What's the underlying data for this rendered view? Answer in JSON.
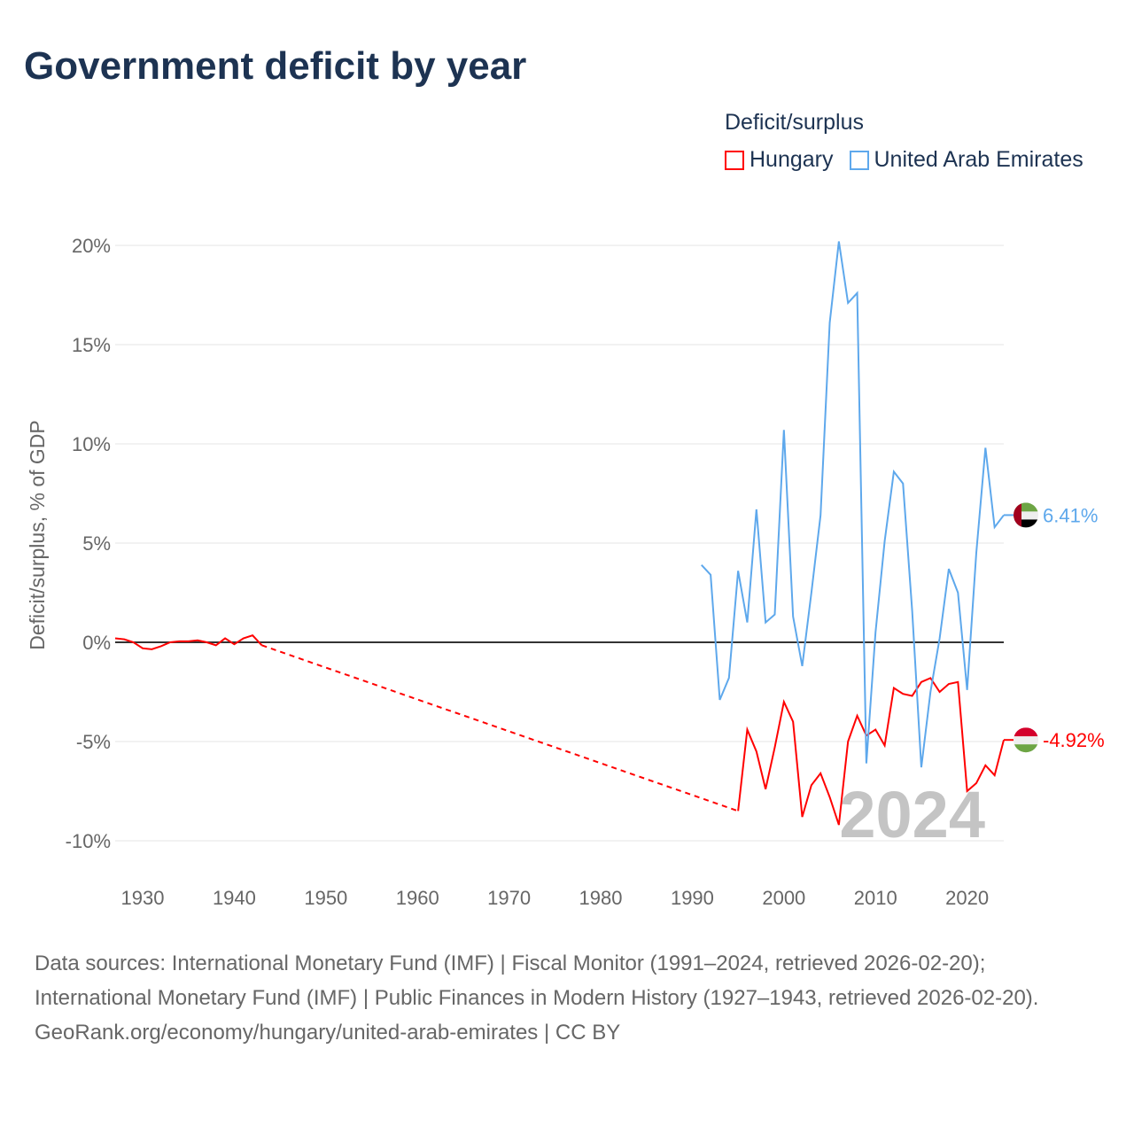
{
  "title": "Government deficit by year",
  "legend": {
    "title": "Deficit/surplus"
  },
  "footer": {
    "sources": "Data sources: International Monetary Fund (IMF) | Fiscal Monitor (1991–2024, retrieved 2026-02-20); International Monetary Fund (IMF) | Public Finances in Modern History (1927–1943, retrieved 2026-02-20).",
    "credit": "GeoRank.org/economy/hungary/united-arab-emirates | CC BY"
  },
  "chart_data": {
    "type": "line",
    "title": "Government deficit by year",
    "xlabel": "",
    "ylabel": "Deficit/surplus, % of GDP",
    "xlim": [
      1927,
      2024
    ],
    "ylim": [
      -10,
      20
    ],
    "x_ticks": [
      1930,
      1940,
      1950,
      1960,
      1970,
      1980,
      1990,
      2000,
      2010,
      2020
    ],
    "x_tick_labels": [
      "1930",
      "1940",
      "1950",
      "1960",
      "1970",
      "1980",
      "1990",
      "2000",
      "2010",
      "2020"
    ],
    "y_ticks": [
      -10,
      -5,
      0,
      5,
      10,
      15,
      20
    ],
    "y_tick_labels": [
      "-10%",
      "-5%",
      "0%",
      "5%",
      "10%",
      "15%",
      "20%"
    ],
    "year_watermark": "2024",
    "grid": true,
    "legend_placement": "top-right",
    "series": [
      {
        "name": "Hungary",
        "color": "#ff0000",
        "end_label": "-4.92%",
        "flag": "hungary",
        "gap": [
          1943,
          1995
        ],
        "x": [
          1927,
          1928,
          1929,
          1930,
          1931,
          1932,
          1933,
          1934,
          1935,
          1936,
          1937,
          1938,
          1939,
          1940,
          1941,
          1942,
          1943,
          1995,
          1996,
          1997,
          1998,
          1999,
          2000,
          2001,
          2002,
          2003,
          2004,
          2005,
          2006,
          2007,
          2008,
          2009,
          2010,
          2011,
          2012,
          2013,
          2014,
          2015,
          2016,
          2017,
          2018,
          2019,
          2020,
          2021,
          2022,
          2023,
          2024
        ],
        "y": [
          0.2,
          0.15,
          0.0,
          -0.3,
          -0.35,
          -0.2,
          0.0,
          0.05,
          0.05,
          0.1,
          0.0,
          -0.15,
          0.2,
          -0.1,
          0.2,
          0.35,
          -0.15,
          -8.5,
          -4.4,
          -5.5,
          -7.4,
          -5.3,
          -3.0,
          -4.0,
          -8.8,
          -7.2,
          -6.6,
          -7.8,
          -9.2,
          -5.0,
          -3.7,
          -4.7,
          -4.4,
          -5.2,
          -2.3,
          -2.6,
          -2.7,
          -2.0,
          -1.8,
          -2.5,
          -2.1,
          -2.0,
          -7.5,
          -7.1,
          -6.2,
          -6.7,
          -4.92
        ]
      },
      {
        "name": "United Arab Emirates",
        "color": "#5ea8ec",
        "end_label": "6.41%",
        "flag": "uae",
        "x": [
          1991,
          1992,
          1993,
          1994,
          1995,
          1996,
          1997,
          1998,
          1999,
          2000,
          2001,
          2002,
          2003,
          2004,
          2005,
          2006,
          2007,
          2008,
          2009,
          2010,
          2011,
          2012,
          2013,
          2014,
          2015,
          2016,
          2017,
          2018,
          2019,
          2020,
          2021,
          2022,
          2023,
          2024
        ],
        "y": [
          3.9,
          3.4,
          -2.9,
          -1.8,
          3.6,
          1.0,
          6.7,
          1.0,
          1.4,
          10.7,
          1.3,
          -1.2,
          2.5,
          6.4,
          16.1,
          20.2,
          17.1,
          17.6,
          -6.1,
          0.5,
          5.1,
          8.6,
          8.0,
          1.6,
          -6.3,
          -2.5,
          0.2,
          3.7,
          2.5,
          -2.4,
          4.5,
          9.8,
          5.8,
          6.41
        ]
      }
    ]
  }
}
